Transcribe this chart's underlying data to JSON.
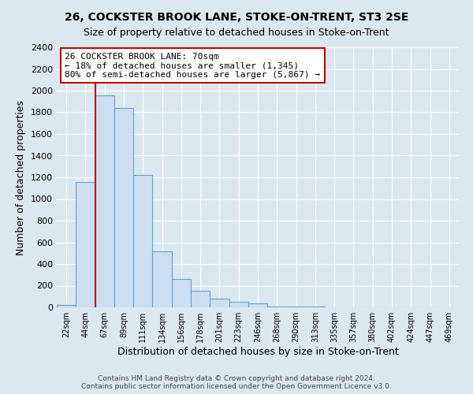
{
  "title": "26, COCKSTER BROOK LANE, STOKE-ON-TRENT, ST3 2SE",
  "subtitle": "Size of property relative to detached houses in Stoke-on-Trent",
  "xlabel": "Distribution of detached houses by size in Stoke-on-Trent",
  "ylabel": "Number of detached properties",
  "bar_labels": [
    "22sqm",
    "44sqm",
    "67sqm",
    "89sqm",
    "111sqm",
    "134sqm",
    "156sqm",
    "178sqm",
    "201sqm",
    "223sqm",
    "246sqm",
    "268sqm",
    "290sqm",
    "313sqm",
    "335sqm",
    "357sqm",
    "380sqm",
    "402sqm",
    "424sqm",
    "447sqm",
    "469sqm"
  ],
  "bar_values": [
    25,
    1155,
    1960,
    1840,
    1225,
    520,
    265,
    150,
    80,
    50,
    40,
    10,
    8,
    5,
    2,
    1,
    1,
    0,
    0,
    0,
    0
  ],
  "bar_color": "#ccdff0",
  "bar_edge_color": "#5ba3d0",
  "vline_color": "#cc0000",
  "annotation_line1": "26 COCKSTER BROOK LANE: 70sqm",
  "annotation_line2": "← 18% of detached houses are smaller (1,345)",
  "annotation_line3": "80% of semi-detached houses are larger (5,867) →",
  "annotation_box_color": "#ffffff",
  "annotation_box_edge": "#cc0000",
  "ylim": [
    0,
    2400
  ],
  "yticks": [
    0,
    200,
    400,
    600,
    800,
    1000,
    1200,
    1400,
    1600,
    1800,
    2000,
    2200,
    2400
  ],
  "footer_line1": "Contains HM Land Registry data © Crown copyright and database right 2024.",
  "footer_line2": "Contains public sector information licensed under the Open Government Licence v3.0.",
  "background_color": "#dce8f0",
  "plot_background": "#dce8f0",
  "grid_color": "#ffffff",
  "title_fontsize": 10,
  "subtitle_fontsize": 9
}
